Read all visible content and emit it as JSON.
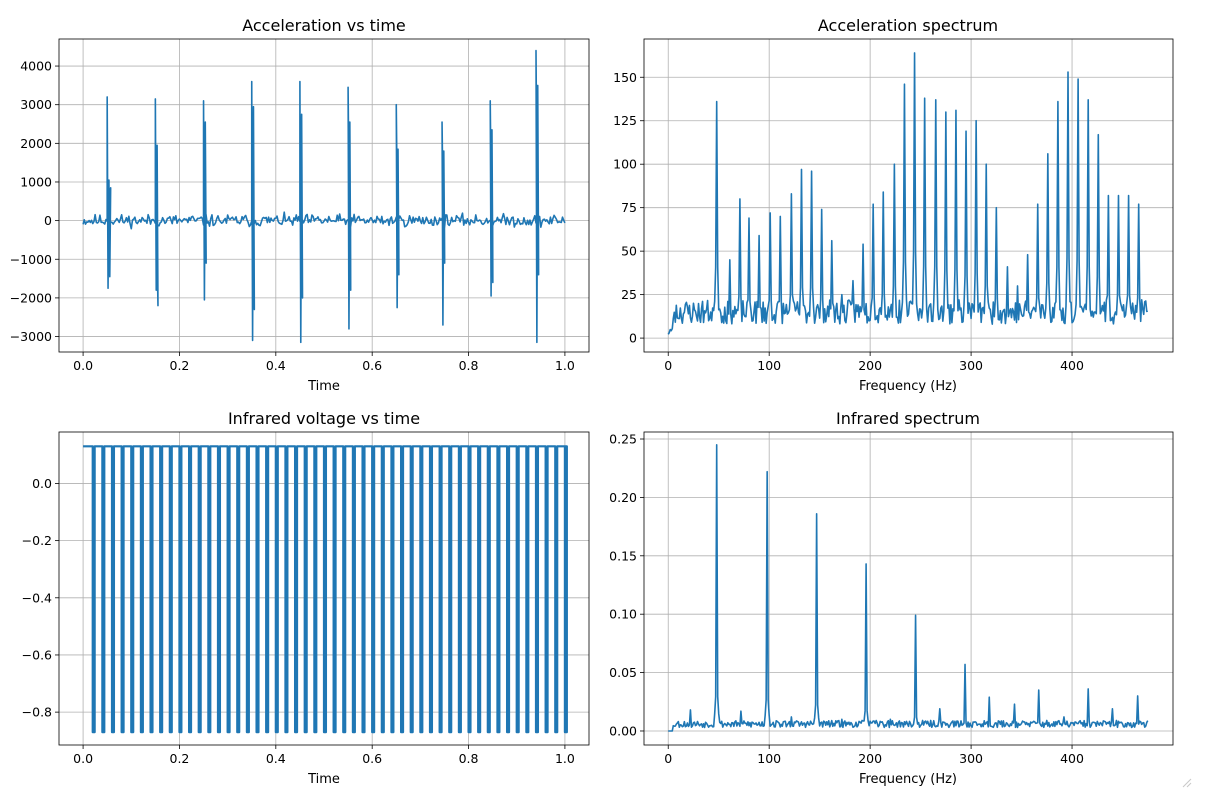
{
  "chart_data": [
    {
      "id": "acc_time",
      "type": "line",
      "title": "Acceleration vs time",
      "xlabel": "Time",
      "ylabel": "",
      "xlim": [
        -0.05,
        1.05
      ],
      "ylim": [
        -3400,
        4700
      ],
      "xticks": [
        0.0,
        0.2,
        0.4,
        0.6,
        0.8,
        1.0
      ],
      "xtick_labels": [
        "0.0",
        "0.2",
        "0.4",
        "0.6",
        "0.8",
        "1.0"
      ],
      "yticks": [
        -3000,
        -2000,
        -1000,
        0,
        1000,
        2000,
        3000,
        4000
      ],
      "ytick_labels": [
        "−3000",
        "−2000",
        "−1000",
        "0",
        "1000",
        "2000",
        "3000",
        "4000"
      ],
      "grid": true,
      "color": "#1f77b4",
      "series": [
        {
          "name": "acceleration",
          "noise_amplitude": 170,
          "noise_step": 0.0025,
          "spikes": [
            {
              "t": 0.05,
              "values": [
                3200,
                -1750,
                1050,
                -1450,
                850
              ]
            },
            {
              "t": 0.15,
              "values": [
                3150,
                -1800,
                1950,
                -2200
              ]
            },
            {
              "t": 0.25,
              "values": [
                3100,
                -2050,
                2550,
                -1100
              ]
            },
            {
              "t": 0.35,
              "values": [
                3600,
                -3100,
                2950,
                -2300
              ]
            },
            {
              "t": 0.45,
              "values": [
                3600,
                -3150,
                2750,
                -2000
              ]
            },
            {
              "t": 0.55,
              "values": [
                3450,
                -2800,
                2550,
                -1800
              ]
            },
            {
              "t": 0.65,
              "values": [
                3000,
                -2250,
                1850,
                -1400
              ]
            },
            {
              "t": 0.745,
              "values": [
                2550,
                -2700,
                1800,
                -1100
              ]
            },
            {
              "t": 0.845,
              "values": [
                3100,
                -1950,
                2350,
                -1600
              ]
            },
            {
              "t": 0.94,
              "values": [
                4400,
                -3150,
                3500,
                -1400
              ]
            }
          ]
        }
      ]
    },
    {
      "id": "acc_spec",
      "type": "line",
      "title": "Acceleration spectrum",
      "xlabel": "Frequency (Hz)",
      "ylabel": "",
      "xlim": [
        -24,
        500
      ],
      "ylim": [
        -8,
        172
      ],
      "xticks": [
        0,
        100,
        200,
        300,
        400
      ],
      "xtick_labels": [
        "0",
        "100",
        "200",
        "300",
        "400"
      ],
      "yticks": [
        0,
        25,
        50,
        75,
        100,
        125,
        150
      ],
      "ytick_labels": [
        "0",
        "25",
        "50",
        "75",
        "100",
        "125",
        "150"
      ],
      "grid": true,
      "color": "#1f77b4",
      "series": [
        {
          "name": "acceleration spectrum",
          "f_max": 475,
          "f_step": 1,
          "noise_base": 8,
          "noise_amplitude": 14,
          "peaks": [
            {
              "f": 48,
              "a": 136
            },
            {
              "f": 61,
              "a": 45
            },
            {
              "f": 71,
              "a": 80
            },
            {
              "f": 80,
              "a": 69
            },
            {
              "f": 90,
              "a": 59
            },
            {
              "f": 101,
              "a": 72
            },
            {
              "f": 111,
              "a": 70
            },
            {
              "f": 122,
              "a": 83
            },
            {
              "f": 132,
              "a": 97
            },
            {
              "f": 142,
              "a": 96
            },
            {
              "f": 152,
              "a": 74
            },
            {
              "f": 162,
              "a": 56
            },
            {
              "f": 172,
              "a": 25
            },
            {
              "f": 183,
              "a": 33
            },
            {
              "f": 193,
              "a": 54
            },
            {
              "f": 203,
              "a": 77
            },
            {
              "f": 213,
              "a": 84
            },
            {
              "f": 224,
              "a": 100
            },
            {
              "f": 234,
              "a": 146
            },
            {
              "f": 244,
              "a": 164
            },
            {
              "f": 254,
              "a": 138
            },
            {
              "f": 265,
              "a": 137
            },
            {
              "f": 275,
              "a": 130
            },
            {
              "f": 285,
              "a": 131
            },
            {
              "f": 295,
              "a": 119
            },
            {
              "f": 305,
              "a": 125
            },
            {
              "f": 315,
              "a": 100
            },
            {
              "f": 325,
              "a": 75
            },
            {
              "f": 336,
              "a": 41
            },
            {
              "f": 346,
              "a": 30
            },
            {
              "f": 356,
              "a": 48
            },
            {
              "f": 366,
              "a": 77
            },
            {
              "f": 376,
              "a": 106
            },
            {
              "f": 386,
              "a": 136
            },
            {
              "f": 396,
              "a": 153
            },
            {
              "f": 406,
              "a": 149
            },
            {
              "f": 416,
              "a": 137
            },
            {
              "f": 426,
              "a": 117
            },
            {
              "f": 436,
              "a": 82
            },
            {
              "f": 446,
              "a": 82
            },
            {
              "f": 456,
              "a": 82
            },
            {
              "f": 466,
              "a": 77
            }
          ]
        }
      ]
    },
    {
      "id": "ir_time",
      "type": "line",
      "title": "Infrared voltage vs time",
      "xlabel": "Time",
      "ylabel": "",
      "xlim": [
        -0.05,
        1.05
      ],
      "ylim": [
        -0.915,
        0.18
      ],
      "xticks": [
        0.0,
        0.2,
        0.4,
        0.6,
        0.8,
        1.0
      ],
      "xtick_labels": [
        "0.0",
        "0.2",
        "0.4",
        "0.6",
        "0.8",
        "1.0"
      ],
      "yticks": [
        -0.8,
        -0.6,
        -0.4,
        -0.2,
        0.0
      ],
      "ytick_labels": [
        "−0.8",
        "−0.6",
        "−0.4",
        "−0.2",
        "0.0"
      ],
      "grid": true,
      "color": "#1f77b4",
      "series": [
        {
          "name": "infrared voltage",
          "high": 0.13,
          "low": -0.87,
          "pulse_period": 0.02,
          "pulse_first": 0.02,
          "pulse_width": 0.004,
          "t_end": 1.0
        }
      ]
    },
    {
      "id": "ir_spec",
      "type": "line",
      "title": "Infrared spectrum",
      "xlabel": "Frequency (Hz)",
      "ylabel": "",
      "xlim": [
        -24,
        500
      ],
      "ylim": [
        -0.012,
        0.256
      ],
      "xticks": [
        0,
        100,
        200,
        300,
        400
      ],
      "xtick_labels": [
        "0",
        "100",
        "200",
        "300",
        "400"
      ],
      "yticks": [
        0.0,
        0.05,
        0.1,
        0.15,
        0.2,
        0.25
      ],
      "ytick_labels": [
        "0.00",
        "0.05",
        "0.10",
        "0.15",
        "0.20",
        "0.25"
      ],
      "grid": true,
      "color": "#1f77b4",
      "series": [
        {
          "name": "infrared spectrum",
          "f_max": 475,
          "f_step": 1,
          "noise_base": 0.003,
          "noise_amplitude": 0.006,
          "peaks": [
            {
              "f": 22,
              "a": 0.018
            },
            {
              "f": 48,
              "a": 0.245
            },
            {
              "f": 72,
              "a": 0.017
            },
            {
              "f": 98,
              "a": 0.222
            },
            {
              "f": 122,
              "a": 0.012
            },
            {
              "f": 147,
              "a": 0.186
            },
            {
              "f": 172,
              "a": 0.01
            },
            {
              "f": 196,
              "a": 0.143
            },
            {
              "f": 220,
              "a": 0.01
            },
            {
              "f": 245,
              "a": 0.099
            },
            {
              "f": 269,
              "a": 0.019
            },
            {
              "f": 294,
              "a": 0.057
            },
            {
              "f": 318,
              "a": 0.029
            },
            {
              "f": 343,
              "a": 0.023
            },
            {
              "f": 367,
              "a": 0.035
            },
            {
              "f": 392,
              "a": 0.012
            },
            {
              "f": 416,
              "a": 0.036
            },
            {
              "f": 440,
              "a": 0.019
            },
            {
              "f": 465,
              "a": 0.03
            }
          ]
        }
      ]
    }
  ]
}
